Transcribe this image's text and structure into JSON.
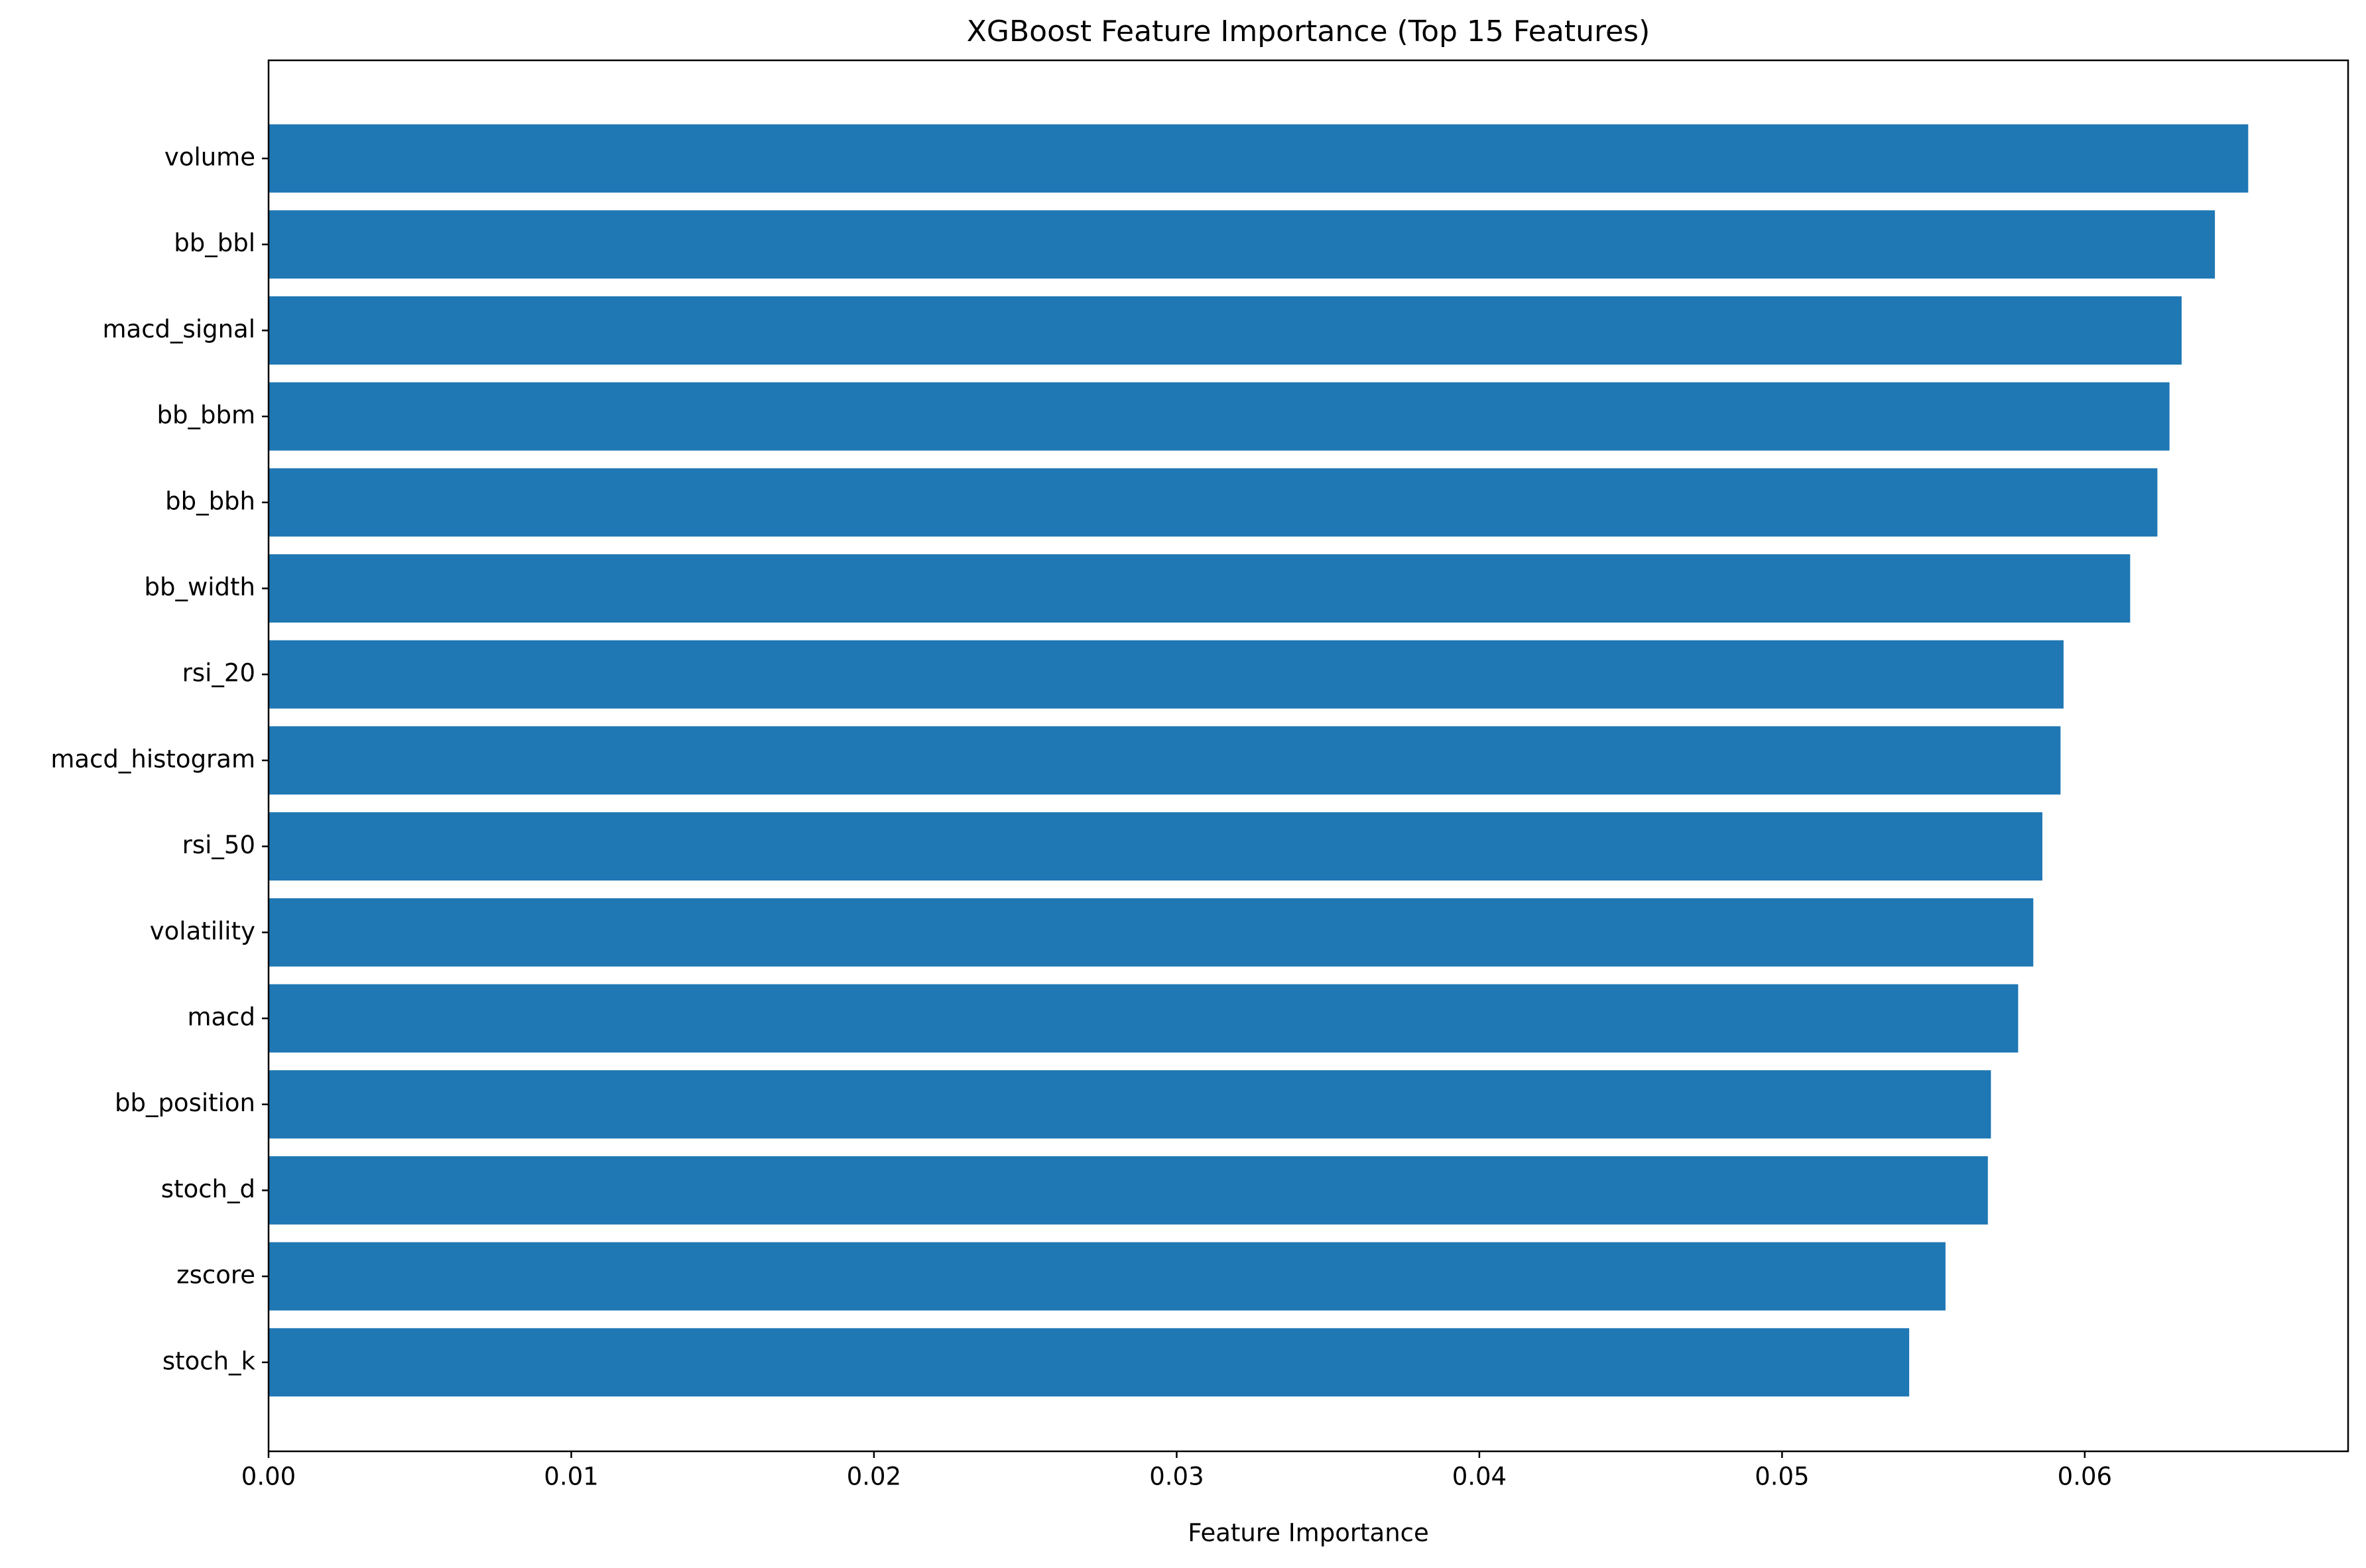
{
  "chart_data": {
    "type": "barh",
    "title": "XGBoost Feature Importance (Top 15 Features)",
    "x_label": "Feature Importance",
    "categories": [
      "volume",
      "bb_bbl",
      "macd_signal",
      "bb_bbm",
      "bb_bbh",
      "bb_width",
      "rsi_20",
      "macd_histogram",
      "rsi_50",
      "volatility",
      "macd",
      "bb_position",
      "stoch_d",
      "zscore",
      "stoch_k"
    ],
    "values": [
      0.0654,
      0.0643,
      0.0632,
      0.0628,
      0.0624,
      0.0615,
      0.0593,
      0.0592,
      0.0586,
      0.0583,
      0.0578,
      0.0569,
      0.0568,
      0.0554,
      0.0542
    ],
    "color": "#1f77b4",
    "xlim": [
      0,
      0.0687
    ],
    "xticks": [
      {
        "value": 0,
        "label": "0.00"
      },
      0.01,
      0.02,
      0.03,
      0.04,
      0.05,
      0.06
    ],
    "grid": false
  }
}
